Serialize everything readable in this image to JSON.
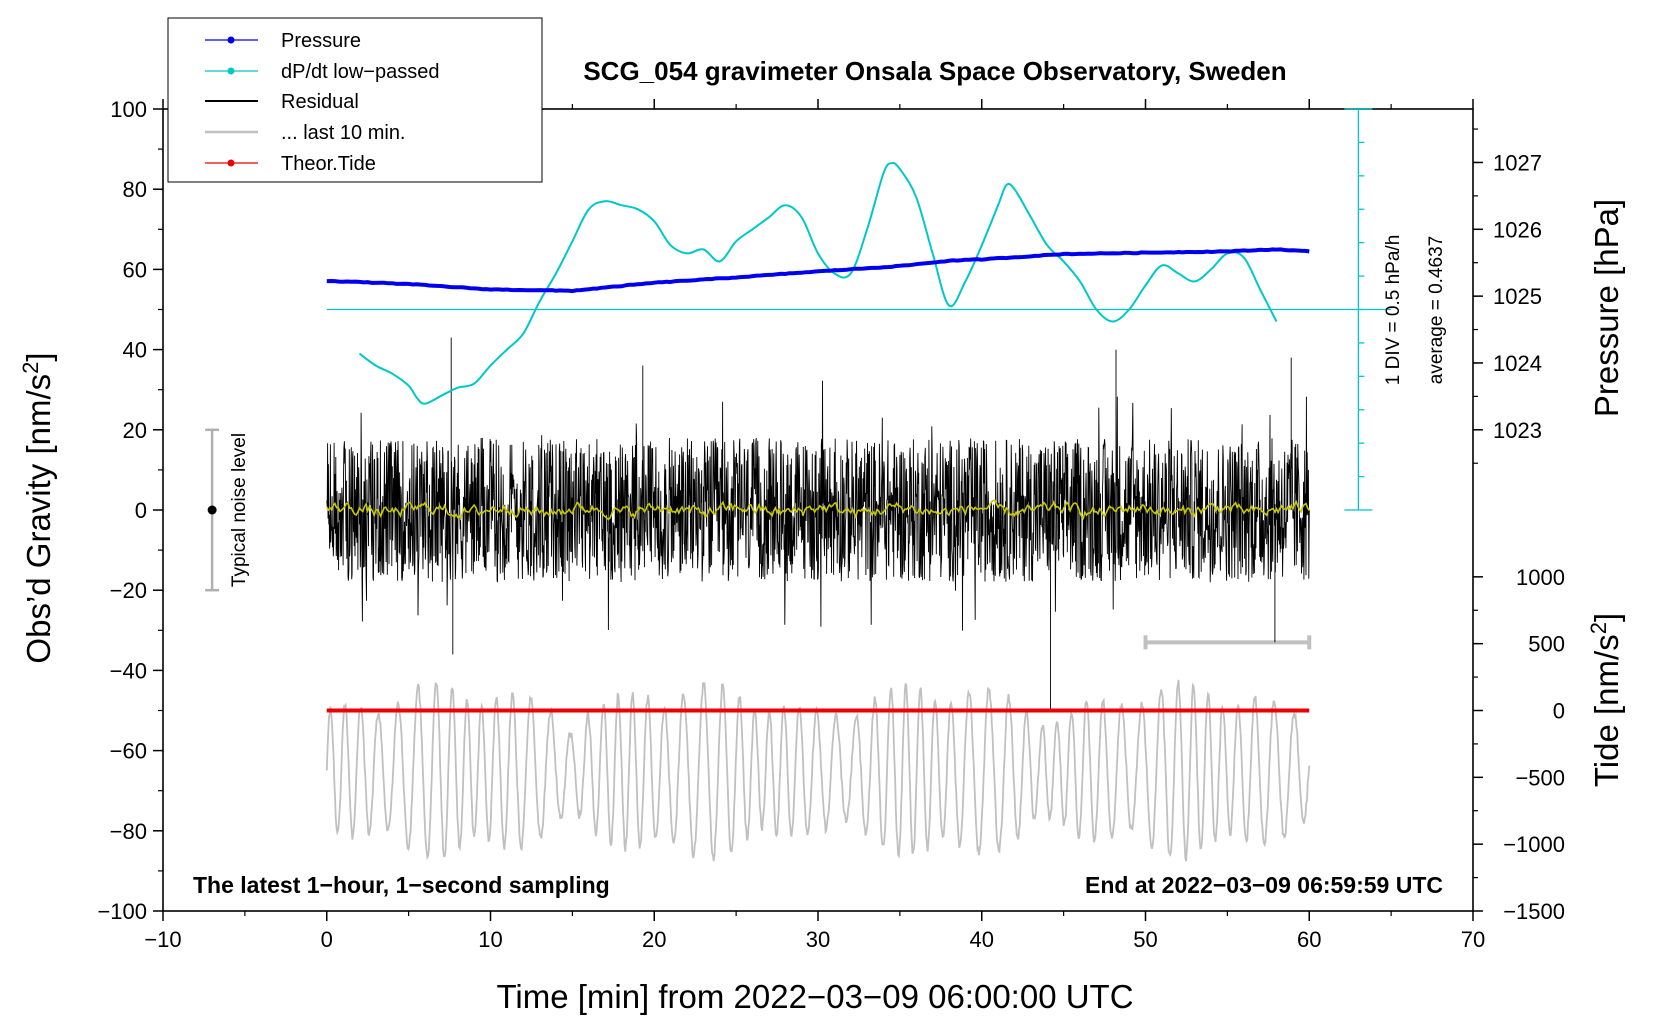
{
  "chart_data": {
    "type": "line",
    "title": "SCG_054 gravimeter Onsala Space Observatory, Sweden",
    "xlabel": "Time [min] from 2022−03−09 06:00:00 UTC",
    "ylabel": "Obs’d Gravity [nm/s",
    "ylabel_sup": "2",
    "ylabel_end": "]",
    "y2label_pressure": "Pressure [hPa]",
    "y2label_tide": "Tide [nm/s",
    "y2label_tide_sup": "2",
    "y2label_tide_end": "]",
    "xlim": [
      -10,
      70
    ],
    "ylim": [
      -100,
      100
    ],
    "x_ticks": [
      "−10",
      "0",
      "10",
      "20",
      "30",
      "40",
      "50",
      "60",
      "70"
    ],
    "x_tick_values": [
      -10,
      0,
      10,
      20,
      30,
      40,
      50,
      60,
      70
    ],
    "y_ticks": [
      "−100",
      "−80",
      "−60",
      "−40",
      "−20",
      "0",
      "20",
      "40",
      "60",
      "80",
      "100"
    ],
    "y_tick_values": [
      -100,
      -80,
      -60,
      -40,
      -20,
      0,
      20,
      40,
      60,
      80,
      100
    ],
    "pressure_axis": {
      "range_hpa": [
        1023,
        1027
      ],
      "ticks": [
        "1023",
        "1024",
        "1025",
        "1026",
        "1027"
      ],
      "tick_values": [
        1023,
        1024,
        1025,
        1026,
        1027
      ],
      "mapping_note": "1023 hPa at gravity 20, 1027 hPa at gravity 86.7"
    },
    "tide_axis": {
      "range": [
        -1500,
        1000
      ],
      "ticks": [
        "1000",
        "500",
        "0",
        "−500",
        "−1000",
        "−1500"
      ],
      "tick_values": [
        1000,
        500,
        0,
        -500,
        -1000,
        -1500
      ],
      "mapping_note": "0 nm/s2 at gravity -50, 1000 nm/s2 at gravity -16.7"
    },
    "legend": [
      {
        "label": "Pressure",
        "color": "#0000ee",
        "marker": true
      },
      {
        "label": "dP/dt low−passed",
        "color": "#00c8c8",
        "marker": true
      },
      {
        "label": "Residual",
        "color": "#000000",
        "marker": false
      },
      {
        "label": "... last 10 min.",
        "color": "#c0c0c0",
        "marker": false
      },
      {
        "label": "Theor.Tide",
        "color": "#ee0000",
        "marker": true
      }
    ],
    "series": [
      {
        "name": "Pressure",
        "color": "#0000ee",
        "unit": "hPa",
        "x": [
          0,
          5,
          10,
          15,
          20,
          25,
          30,
          35,
          38,
          40,
          45,
          50,
          55,
          58,
          60
        ],
        "values": [
          1025.23,
          1025.18,
          1025.1,
          1025.08,
          1025.2,
          1025.28,
          1025.37,
          1025.45,
          1025.53,
          1025.55,
          1025.63,
          1025.65,
          1025.67,
          1025.7,
          1025.67
        ]
      },
      {
        "name": "dP/dt low-passed",
        "color": "#00c8c8",
        "unit": "gravity axis units",
        "baseline": 50,
        "x": [
          2,
          3,
          4,
          5,
          5.5,
          6,
          7,
          8,
          9,
          10,
          11,
          12,
          13,
          14,
          15,
          16,
          17,
          18,
          19,
          20,
          21,
          22,
          23,
          24,
          25,
          26,
          27,
          28,
          29,
          30,
          31,
          32,
          33,
          34,
          34.5,
          35,
          36,
          37,
          38,
          39,
          40,
          41,
          41.5,
          42,
          43,
          44,
          45,
          46,
          47,
          48,
          49,
          50,
          51,
          52,
          53,
          54,
          55,
          56,
          57,
          58
        ],
        "values": [
          39,
          36,
          34,
          31,
          28,
          26.5,
          28.5,
          30.5,
          31.5,
          36,
          40,
          44,
          52,
          59,
          67,
          75,
          77,
          76,
          75,
          72,
          66,
          64,
          65,
          62,
          67,
          70,
          73,
          76,
          73,
          64,
          59,
          59,
          70,
          84,
          86.5,
          85,
          78,
          64,
          51,
          57,
          66,
          76,
          81,
          80,
          73,
          66,
          62,
          57,
          50,
          47,
          50,
          56,
          61,
          59,
          57,
          60,
          64,
          63,
          55,
          47
        ]
      },
      {
        "name": "Residual",
        "color": "#000000",
        "description": "1-second residual gravity, fluctuating about 0 within roughly ±20 nm/s2, extremes near +43 and −50",
        "x_range": [
          0,
          60
        ]
      },
      {
        "name": "Residual (smoothed)",
        "color": "#c8c800",
        "description": "running mean of residual, near 0 within about ±3 nm/s2",
        "x_range": [
          0,
          60
        ]
      },
      {
        "name": "... last 10 min.",
        "color": "#c0c0c0",
        "description": "oscillating trace in gravity units centred near −65, amplitude up to about ±25",
        "x_range": [
          0,
          60
        ],
        "scale_bar_x": [
          50,
          60
        ],
        "scale_bar_y": -33
      },
      {
        "name": "Theor.Tide",
        "color": "#ee0000",
        "unit": "nm/s2",
        "x": [
          0,
          60
        ],
        "values": [
          0,
          0
        ]
      }
    ],
    "noise_bar": {
      "label": "Typical noise level",
      "x": -7,
      "y_range": [
        -20,
        20
      ],
      "center": 0
    },
    "dpdt_scale": {
      "label_div": "1 DIV = 0.5 hPa/h",
      "label_avg": "average = 0.4637",
      "x": 63,
      "y_range": [
        0,
        100
      ],
      "divisions": 12
    },
    "annotations": {
      "bottom_left": "The latest 1−hour, 1−second sampling",
      "bottom_right": "End at 2022−03−09 06:59:59 UTC"
    }
  }
}
